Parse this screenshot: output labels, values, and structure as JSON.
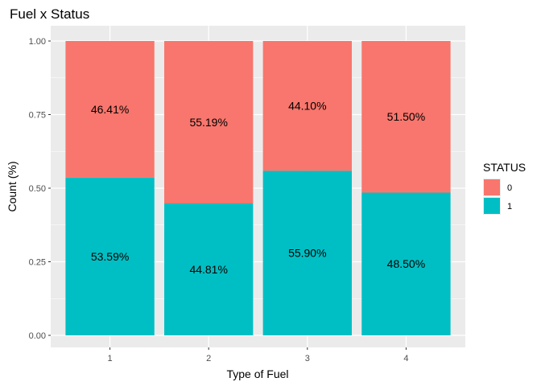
{
  "chart_data": {
    "type": "bar",
    "stacked": true,
    "title": "Fuel x Status",
    "xlabel": "Type of Fuel",
    "ylabel": "Count (%)",
    "ylim": [
      0,
      1
    ],
    "yticks": [
      "0.00",
      "0.25",
      "0.50",
      "0.75",
      "1.00"
    ],
    "categories": [
      "1",
      "2",
      "3",
      "4"
    ],
    "series": [
      {
        "name": "1",
        "color": "#00BFC4",
        "values": [
          0.5359,
          0.4481,
          0.559,
          0.485
        ],
        "labels": [
          "53.59%",
          "44.81%",
          "55.90%",
          "48.50%"
        ]
      },
      {
        "name": "0",
        "color": "#F8766D",
        "values": [
          0.4641,
          0.5519,
          0.441,
          0.515
        ],
        "labels": [
          "46.41%",
          "55.19%",
          "44.10%",
          "51.50%"
        ]
      }
    ],
    "legend": {
      "title": "STATUS",
      "position": "right",
      "items": [
        "0",
        "1"
      ]
    },
    "panel_background": "#EBEBEB",
    "grid": true
  }
}
